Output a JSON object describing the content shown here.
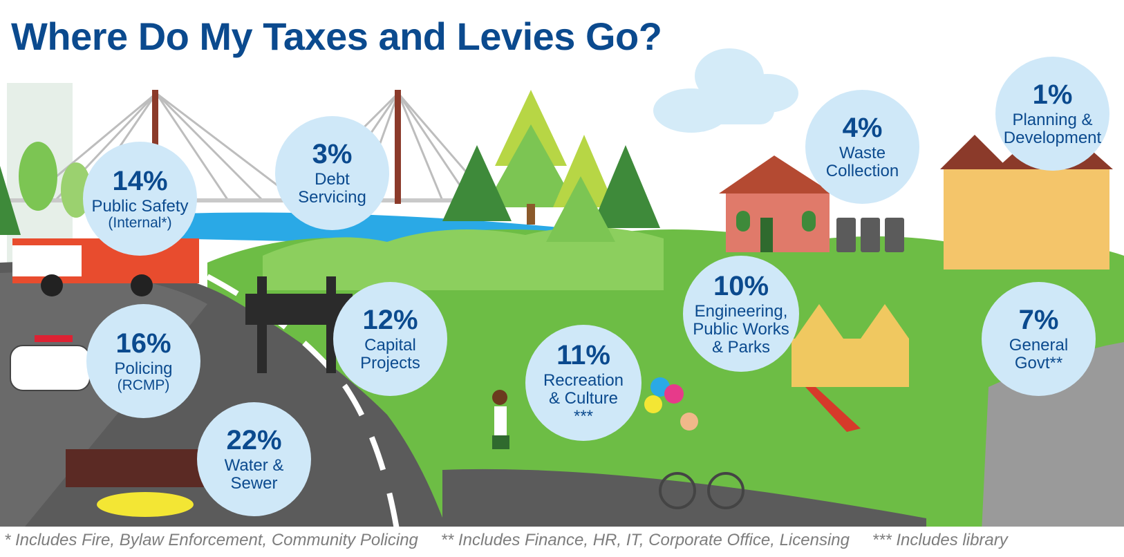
{
  "title": "Where Do My Taxes and Levies Go?",
  "chart_data": {
    "type": "bubble-infographic",
    "title": "Where Do My Taxes and Levies Go?",
    "categories": [
      "Public Safety (Internal*)",
      "Debt Servicing",
      "Policing (RCMP)",
      "Capital Projects",
      "Water & Sewer",
      "Recreation & Culture ***",
      "Engineering, Public Works & Parks",
      "Waste Collection",
      "Planning & Development",
      "General Govt**"
    ],
    "values": [
      14,
      3,
      16,
      12,
      22,
      11,
      10,
      4,
      1,
      7
    ],
    "unit": "%"
  },
  "bubbles": {
    "public_safety": {
      "pct": "14%",
      "label": "Public Safety",
      "sub": "(Internal*)"
    },
    "debt": {
      "pct": "3%",
      "label1": "Debt",
      "label2": "Servicing"
    },
    "policing": {
      "pct": "16%",
      "label": "Policing",
      "sub": "(RCMP)"
    },
    "capital": {
      "pct": "12%",
      "label1": "Capital",
      "label2": "Projects"
    },
    "water": {
      "pct": "22%",
      "label1": "Water &",
      "label2": "Sewer"
    },
    "recreation": {
      "pct": "11%",
      "label1": "Recreation",
      "label2": "& Culture",
      "label3": "***"
    },
    "engineering": {
      "pct": "10%",
      "label1": "Engineering,",
      "label2": "Public Works",
      "label3": "& Parks"
    },
    "waste": {
      "pct": "4%",
      "label1": "Waste",
      "label2": "Collection"
    },
    "planning": {
      "pct": "1%",
      "label1": "Planning &",
      "label2": "Development"
    },
    "general": {
      "pct": "7%",
      "label1": "General",
      "label2": "Govt**"
    }
  },
  "footnotes": {
    "f1": "*  Includes Fire, Bylaw Enforcement, Community Policing",
    "f2": "** Includes Finance, HR, IT, Corporate Office, Licensing",
    "f3": "*** Includes library"
  },
  "colors": {
    "title": "#0b4a8e",
    "bubble": "#cfe8f8",
    "grass": "#6dbd45",
    "road": "#5b5b5b",
    "river": "#2aa9e6"
  }
}
